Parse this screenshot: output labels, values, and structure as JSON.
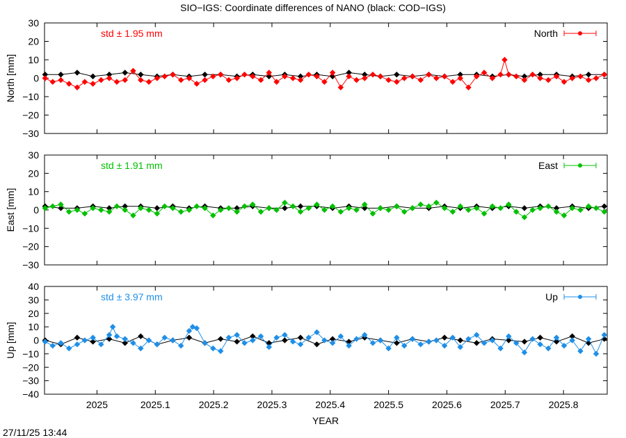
{
  "title": "SIO−IGS: Coordinate differences of NANO (black: COD−IGS)",
  "timestamp": "27/11/25 13:44",
  "xlabel": "YEAR",
  "chart_data": [
    {
      "type": "line",
      "name": "North",
      "ylabel": "North [mm]",
      "std_label": "std ± 1.95 mm",
      "legend": "North",
      "legend_position": "top-right",
      "color": "#ff0000",
      "ylim": [
        -30,
        30
      ],
      "yticks": [
        -30,
        -20,
        -10,
        0,
        10,
        20,
        30
      ],
      "ytick_labels": [
        "−30",
        "−20",
        "−10",
        "0",
        "10",
        "20",
        "30"
      ],
      "xlim": [
        2024.91,
        2025.875
      ],
      "xticks": [
        2025,
        2025.1,
        2025.2,
        2025.3,
        2025.4,
        2025.5,
        2025.6,
        2025.7,
        2025.8
      ],
      "xtick_labels": [
        "2025",
        "2025.1",
        "2025.2",
        "2025.3",
        "2025.4",
        "2025.5",
        "2025.6",
        "2025.7",
        "2025.8"
      ],
      "grid": false,
      "series": [
        {
          "color": "#ff0000",
          "x": [
            2024.911,
            2024.924,
            2024.938,
            2024.952,
            2024.966,
            2024.979,
            2024.993,
            2025.007,
            2025.021,
            2025.034,
            2025.048,
            2025.062,
            2025.075,
            2025.089,
            2025.103,
            2025.116,
            2025.13,
            2025.144,
            2025.158,
            2025.171,
            2025.185,
            2025.199,
            2025.212,
            2025.226,
            2025.24,
            2025.253,
            2025.267,
            2025.281,
            2025.295,
            2025.308,
            2025.322,
            2025.336,
            2025.349,
            2025.363,
            2025.377,
            2025.39,
            2025.404,
            2025.418,
            2025.432,
            2025.445,
            2025.459,
            2025.473,
            2025.486,
            2025.5,
            2025.514,
            2025.527,
            2025.541,
            2025.555,
            2025.569,
            2025.582,
            2025.596,
            2025.61,
            2025.623,
            2025.637,
            2025.651,
            2025.664,
            2025.678,
            2025.692,
            2025.699,
            2025.706,
            2025.719,
            2025.733,
            2025.747,
            2025.76,
            2025.774,
            2025.788,
            2025.801,
            2025.815,
            2025.829,
            2025.843,
            2025.856,
            2025.87
          ],
          "y": [
            0,
            -2,
            -1,
            -3,
            -5,
            -2,
            -3,
            -1,
            0,
            -2,
            -1,
            4,
            -1,
            -2,
            0,
            1,
            2,
            -1,
            0,
            -3,
            -1,
            1,
            2,
            -1,
            0,
            2,
            1,
            -1,
            3,
            -2,
            1,
            0,
            -1,
            2,
            1,
            -2,
            3,
            -5,
            1,
            -1,
            0,
            2,
            1,
            -1,
            -2,
            0,
            1,
            -1,
            2,
            0,
            1,
            -2,
            0,
            -5,
            1,
            3,
            0,
            2,
            10,
            2,
            1,
            -1,
            2,
            0,
            -1,
            1,
            -2,
            0,
            1,
            -1,
            0,
            2
          ]
        },
        {
          "color": "#000000",
          "x": [
            2024.911,
            2024.938,
            2024.966,
            2024.993,
            2025.021,
            2025.048,
            2025.075,
            2025.103,
            2025.13,
            2025.158,
            2025.185,
            2025.212,
            2025.24,
            2025.267,
            2025.295,
            2025.322,
            2025.349,
            2025.377,
            2025.404,
            2025.432,
            2025.459,
            2025.486,
            2025.514,
            2025.541,
            2025.569,
            2025.596,
            2025.623,
            2025.651,
            2025.678,
            2025.706,
            2025.733,
            2025.76,
            2025.788,
            2025.815,
            2025.843,
            2025.87
          ],
          "y": [
            2,
            2,
            3,
            1,
            2,
            3,
            2,
            1,
            2,
            1,
            2,
            2,
            1,
            2,
            1,
            2,
            1,
            2,
            1,
            3,
            2,
            1,
            2,
            1,
            2,
            1,
            2,
            2,
            1,
            2,
            1,
            2,
            2,
            1,
            2,
            2
          ]
        }
      ]
    },
    {
      "type": "line",
      "name": "East",
      "ylabel": "East [mm]",
      "std_label": "std ± 1.91 mm",
      "legend": "East",
      "legend_position": "top-right",
      "color": "#00c000",
      "ylim": [
        -30,
        30
      ],
      "yticks": [
        -30,
        -20,
        -10,
        0,
        10,
        20,
        30
      ],
      "ytick_labels": [
        "−30",
        "−20",
        "−10",
        "0",
        "10",
        "20",
        "30"
      ],
      "xlim": [
        2024.91,
        2025.875
      ],
      "xticks": [
        2025,
        2025.1,
        2025.2,
        2025.3,
        2025.4,
        2025.5,
        2025.6,
        2025.7,
        2025.8
      ],
      "xtick_labels": [
        "2025",
        "2025.1",
        "2025.2",
        "2025.3",
        "2025.4",
        "2025.5",
        "2025.6",
        "2025.7",
        "2025.8"
      ],
      "grid": false,
      "series": [
        {
          "color": "#00c000",
          "x": [
            2024.911,
            2024.924,
            2024.938,
            2024.952,
            2024.966,
            2024.979,
            2024.993,
            2025.007,
            2025.021,
            2025.034,
            2025.048,
            2025.062,
            2025.075,
            2025.089,
            2025.103,
            2025.116,
            2025.13,
            2025.144,
            2025.158,
            2025.171,
            2025.185,
            2025.199,
            2025.212,
            2025.226,
            2025.24,
            2025.253,
            2025.267,
            2025.281,
            2025.295,
            2025.308,
            2025.322,
            2025.336,
            2025.349,
            2025.363,
            2025.377,
            2025.39,
            2025.404,
            2025.418,
            2025.432,
            2025.445,
            2025.459,
            2025.473,
            2025.486,
            2025.5,
            2025.514,
            2025.527,
            2025.541,
            2025.555,
            2025.569,
            2025.582,
            2025.596,
            2025.61,
            2025.623,
            2025.637,
            2025.651,
            2025.664,
            2025.678,
            2025.692,
            2025.706,
            2025.719,
            2025.733,
            2025.747,
            2025.76,
            2025.774,
            2025.788,
            2025.801,
            2025.815,
            2025.829,
            2025.843,
            2025.856,
            2025.87
          ],
          "y": [
            1,
            2,
            3,
            -1,
            0,
            -2,
            1,
            0,
            -1,
            2,
            0,
            -3,
            1,
            0,
            -2,
            2,
            1,
            -1,
            0,
            2,
            1,
            -3,
            0,
            1,
            -1,
            2,
            3,
            -1,
            1,
            0,
            4,
            2,
            -1,
            1,
            3,
            0,
            2,
            -1,
            1,
            0,
            3,
            -2,
            1,
            0,
            2,
            -1,
            1,
            3,
            2,
            4,
            1,
            -1,
            2,
            0,
            1,
            -2,
            2,
            1,
            3,
            -1,
            -4,
            0,
            1,
            2,
            -1,
            -3,
            1,
            0,
            2,
            1,
            -1
          ]
        },
        {
          "color": "#000000",
          "x": [
            2024.911,
            2024.938,
            2024.966,
            2024.993,
            2025.021,
            2025.048,
            2025.075,
            2025.103,
            2025.13,
            2025.158,
            2025.185,
            2025.212,
            2025.24,
            2025.267,
            2025.295,
            2025.322,
            2025.349,
            2025.377,
            2025.404,
            2025.432,
            2025.459,
            2025.486,
            2025.514,
            2025.541,
            2025.569,
            2025.596,
            2025.623,
            2025.651,
            2025.678,
            2025.706,
            2025.733,
            2025.76,
            2025.788,
            2025.815,
            2025.843,
            2025.87
          ],
          "y": [
            2,
            1,
            1,
            2,
            1,
            2,
            2,
            1,
            2,
            1,
            2,
            1,
            1,
            2,
            1,
            1,
            2,
            2,
            1,
            2,
            1,
            1,
            2,
            1,
            1,
            2,
            1,
            2,
            1,
            2,
            1,
            2,
            1,
            2,
            1,
            2
          ]
        }
      ]
    },
    {
      "type": "line",
      "name": "Up",
      "ylabel": "Up [mm]",
      "std_label": "std ± 3.97 mm",
      "legend": "Up",
      "legend_position": "top-right",
      "color": "#1e8fe8",
      "ylim": [
        -40,
        40
      ],
      "yticks": [
        -40,
        -30,
        -20,
        -10,
        0,
        10,
        20,
        30,
        40
      ],
      "ytick_labels": [
        "−40",
        "−30",
        "−20",
        "−10",
        "0",
        "10",
        "20",
        "30",
        "40"
      ],
      "xlim": [
        2024.91,
        2025.875
      ],
      "xticks": [
        2025,
        2025.1,
        2025.2,
        2025.3,
        2025.4,
        2025.5,
        2025.6,
        2025.7,
        2025.8
      ],
      "xtick_labels": [
        "2025",
        "2025.1",
        "2025.2",
        "2025.3",
        "2025.4",
        "2025.5",
        "2025.6",
        "2025.7",
        "2025.8"
      ],
      "grid": false,
      "series": [
        {
          "color": "#1e8fe8",
          "x": [
            2024.911,
            2024.924,
            2024.938,
            2024.952,
            2024.966,
            2024.979,
            2024.993,
            2025.007,
            2025.021,
            2025.027,
            2025.034,
            2025.048,
            2025.062,
            2025.075,
            2025.089,
            2025.103,
            2025.116,
            2025.13,
            2025.144,
            2025.158,
            2025.164,
            2025.171,
            2025.185,
            2025.199,
            2025.212,
            2025.226,
            2025.24,
            2025.253,
            2025.267,
            2025.281,
            2025.295,
            2025.308,
            2025.322,
            2025.336,
            2025.349,
            2025.363,
            2025.377,
            2025.39,
            2025.404,
            2025.418,
            2025.432,
            2025.445,
            2025.459,
            2025.473,
            2025.486,
            2025.5,
            2025.514,
            2025.527,
            2025.541,
            2025.555,
            2025.569,
            2025.582,
            2025.596,
            2025.61,
            2025.623,
            2025.637,
            2025.651,
            2025.664,
            2025.678,
            2025.692,
            2025.706,
            2025.719,
            2025.733,
            2025.747,
            2025.76,
            2025.774,
            2025.788,
            2025.801,
            2025.815,
            2025.829,
            2025.843,
            2025.856,
            2025.87
          ],
          "y": [
            -1,
            -4,
            -2,
            -6,
            -3,
            0,
            2,
            -3,
            4,
            10,
            3,
            1,
            -2,
            -6,
            0,
            -3,
            2,
            0,
            -4,
            7,
            10,
            9,
            -2,
            -6,
            -8,
            2,
            4,
            -2,
            0,
            3,
            -5,
            2,
            4,
            -1,
            -3,
            2,
            6,
            0,
            -2,
            3,
            -4,
            1,
            4,
            -2,
            0,
            -6,
            2,
            -4,
            1,
            -3,
            -1,
            0,
            -4,
            2,
            -5,
            1,
            4,
            -2,
            0,
            -6,
            3,
            -2,
            -9,
            1,
            -3,
            -6,
            2,
            -4,
            0,
            -8,
            1,
            -10,
            4
          ]
        },
        {
          "color": "#000000",
          "x": [
            2024.911,
            2024.938,
            2024.966,
            2024.993,
            2025.021,
            2025.048,
            2025.075,
            2025.103,
            2025.13,
            2025.158,
            2025.185,
            2025.212,
            2025.24,
            2025.267,
            2025.295,
            2025.322,
            2025.349,
            2025.377,
            2025.404,
            2025.432,
            2025.459,
            2025.486,
            2025.514,
            2025.541,
            2025.569,
            2025.596,
            2025.623,
            2025.651,
            2025.678,
            2025.706,
            2025.733,
            2025.76,
            2025.788,
            2025.815,
            2025.843,
            2025.87
          ],
          "y": [
            0,
            -3,
            2,
            -1,
            1,
            -2,
            3,
            -3,
            0,
            2,
            -2,
            1,
            -1,
            3,
            -2,
            0,
            2,
            -3,
            1,
            -1,
            2,
            0,
            -2,
            1,
            -1,
            2,
            0,
            -2,
            1,
            0,
            -1,
            2,
            -1,
            3,
            -2,
            1
          ]
        }
      ]
    }
  ]
}
